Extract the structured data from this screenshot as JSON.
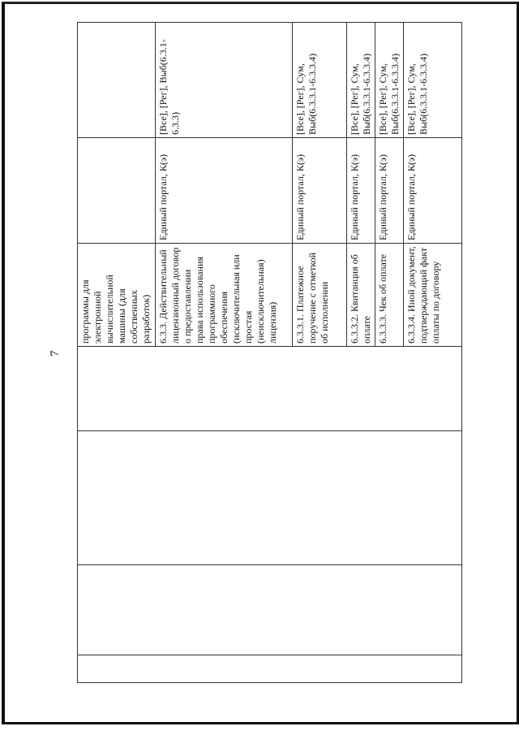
{
  "page_number": "7",
  "rows": [
    {
      "description": "программы для электронной вычислительной машины (для собственных разработок)",
      "source": "",
      "access": ""
    },
    {
      "description": "6.3.3. Действительный лицензионный договор о предоставлении права использования программного обеспечения (исключительная или простая (неисключительная) лицензия)",
      "source": "Единый портал, К(э)",
      "access": "[Все], [Рег], Выб(6.3.1-6.3.3)"
    },
    {
      "description": "6.3.3.1. Платежное поручение с отметкой об исполнении",
      "source": "Единый портал, К(э)",
      "access": "[Все], [Рег], Сум, Выб(6.3.3.1-6.3.3.4)"
    },
    {
      "description": "6.3.3.2. Квитанция об оплате",
      "source": "Единый портал, К(э)",
      "access": "[Все], [Рег], Сум, Выб(6.3.3.1-6.3.3.4)"
    },
    {
      "description": "6.3.3.3. Чек об оплате",
      "source": "Единый портал, К(э)",
      "access": "[Все], [Рег], Сум, Выб(6.3.3.1-6.3.3.4)"
    },
    {
      "description": "6.3.3.4. Иной документ, подтверждающий факт оплаты по договору",
      "source": "Единый портал, К(э)",
      "access": "[Все], [Рег], Сум, Выб(6.3.3.1-6.3.3.4)"
    }
  ]
}
